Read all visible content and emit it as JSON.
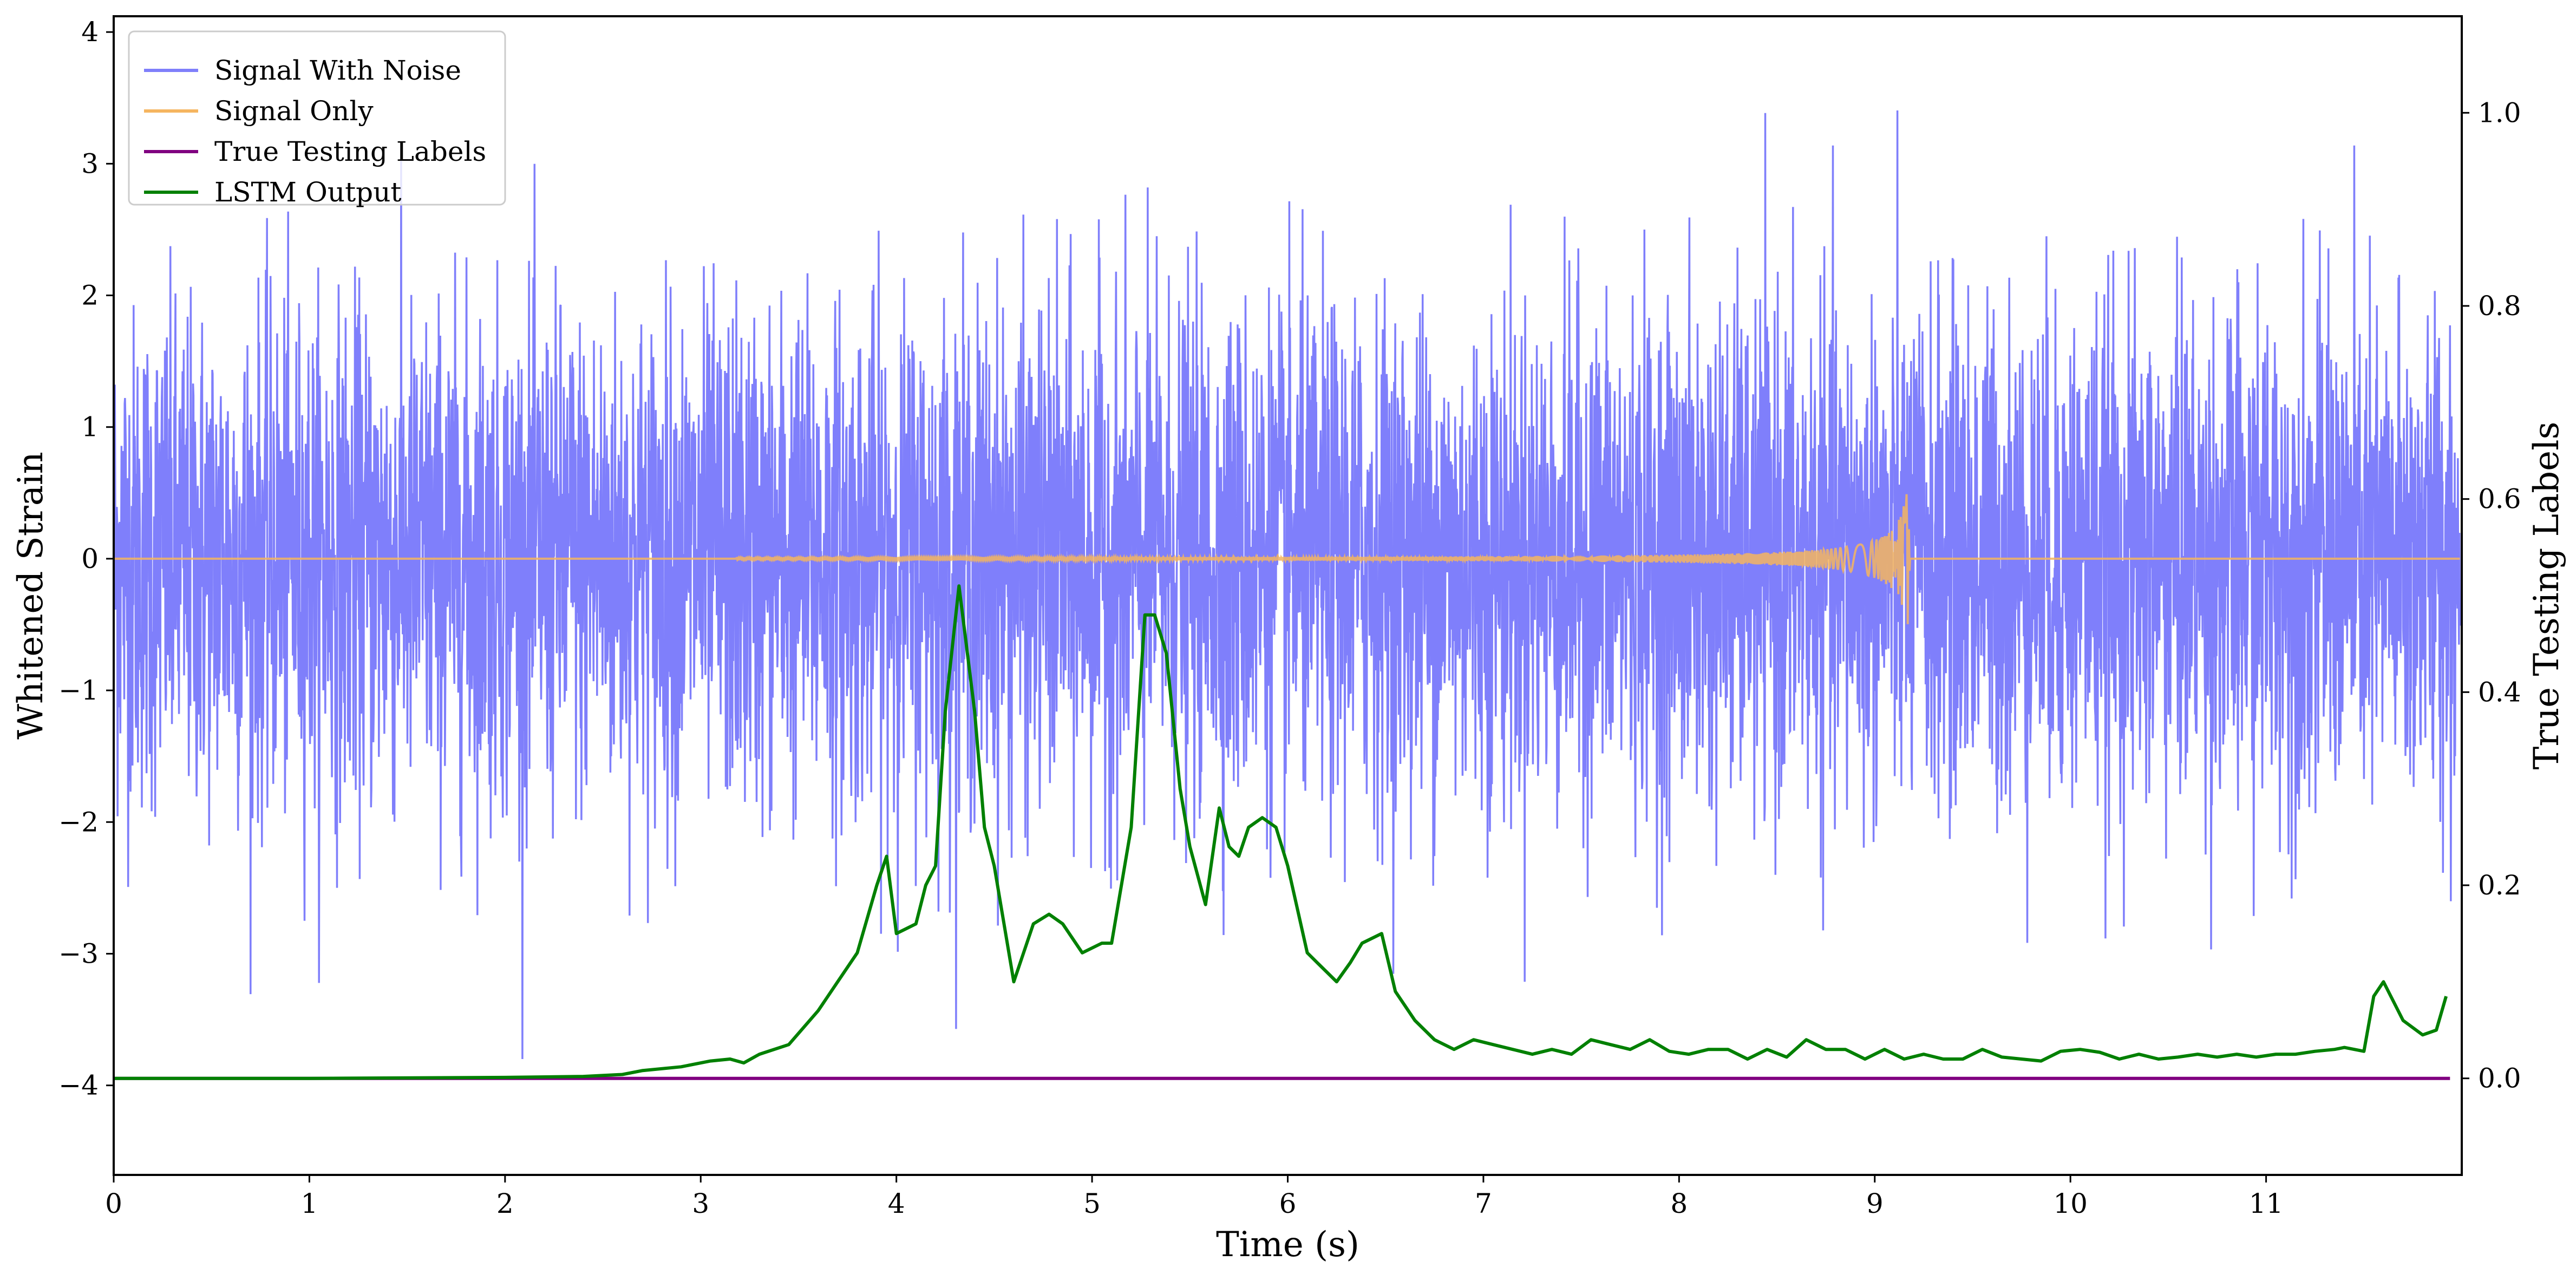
{
  "chart_data": {
    "type": "line",
    "xlabel": "Time (s)",
    "ylabel": "Whitened Strain",
    "ylabel_right": "True Testing Labels",
    "xlim": [
      0,
      12
    ],
    "ylim": [
      -4.68,
      4.12
    ],
    "ylim_right": [
      -0.1,
      1.1
    ],
    "xticks": [
      "0",
      "1",
      "2",
      "3",
      "4",
      "5",
      "6",
      "7",
      "8",
      "9",
      "10",
      "11"
    ],
    "yticks": [
      "−4",
      "−3",
      "−2",
      "−1",
      "0",
      "1",
      "2",
      "3",
      "4"
    ],
    "yticks_right": [
      "0.0",
      "0.2",
      "0.4",
      "0.6",
      "0.8",
      "1.0"
    ],
    "grid": false,
    "legend_position": "top-left",
    "colors": {
      "noise": "#7f7ffb",
      "signal": "#f5b55f",
      "labels": "#800080",
      "lstm": "#008000"
    },
    "series": [
      {
        "name": "Signal With Noise",
        "axis": "left",
        "description_kind": "dense whitened noise, approx. N(0,1), sampled 12 s",
        "amplitude_std": 0.95
      },
      {
        "name": "Signal Only",
        "axis": "left",
        "chirp_peak_time": 9.18,
        "chirp_peak_amplitude": 0.68
      },
      {
        "name": "True Testing Labels",
        "axis": "right",
        "x": [
          0,
          11.94
        ],
        "y": [
          0.0,
          0.0
        ]
      },
      {
        "name": "LSTM Output",
        "axis": "right",
        "x": [
          0.0,
          1.0,
          2.0,
          2.4,
          2.6,
          2.7,
          2.9,
          3.05,
          3.15,
          3.22,
          3.3,
          3.45,
          3.6,
          3.7,
          3.8,
          3.9,
          3.95,
          4.0,
          4.1,
          4.15,
          4.2,
          4.25,
          4.32,
          4.4,
          4.45,
          4.5,
          4.6,
          4.7,
          4.78,
          4.85,
          4.95,
          5.05,
          5.1,
          5.2,
          5.27,
          5.32,
          5.38,
          5.45,
          5.5,
          5.58,
          5.65,
          5.7,
          5.75,
          5.8,
          5.87,
          5.94,
          6.0,
          6.1,
          6.15,
          6.25,
          6.32,
          6.38,
          6.48,
          6.55,
          6.65,
          6.75,
          6.85,
          6.95,
          7.05,
          7.15,
          7.25,
          7.35,
          7.45,
          7.55,
          7.65,
          7.75,
          7.85,
          7.95,
          8.05,
          8.15,
          8.25,
          8.35,
          8.45,
          8.55,
          8.65,
          8.75,
          8.85,
          8.95,
          9.05,
          9.15,
          9.25,
          9.35,
          9.45,
          9.55,
          9.65,
          9.75,
          9.85,
          9.95,
          10.05,
          10.15,
          10.25,
          10.35,
          10.45,
          10.55,
          10.65,
          10.75,
          10.85,
          10.95,
          11.05,
          11.15,
          11.25,
          11.35,
          11.4,
          11.5,
          11.55,
          11.6,
          11.7,
          11.8,
          11.87,
          11.92
        ],
        "y": [
          0.0,
          0.0,
          0.001,
          0.002,
          0.004,
          0.008,
          0.012,
          0.018,
          0.02,
          0.016,
          0.025,
          0.035,
          0.07,
          0.1,
          0.13,
          0.2,
          0.23,
          0.15,
          0.16,
          0.2,
          0.22,
          0.38,
          0.51,
          0.38,
          0.26,
          0.22,
          0.1,
          0.16,
          0.17,
          0.16,
          0.13,
          0.14,
          0.14,
          0.26,
          0.48,
          0.48,
          0.44,
          0.3,
          0.24,
          0.18,
          0.28,
          0.24,
          0.23,
          0.26,
          0.27,
          0.26,
          0.22,
          0.13,
          0.12,
          0.1,
          0.12,
          0.14,
          0.15,
          0.09,
          0.06,
          0.04,
          0.03,
          0.04,
          0.035,
          0.03,
          0.025,
          0.03,
          0.025,
          0.04,
          0.035,
          0.03,
          0.04,
          0.028,
          0.025,
          0.03,
          0.03,
          0.02,
          0.03,
          0.022,
          0.04,
          0.03,
          0.03,
          0.02,
          0.03,
          0.02,
          0.025,
          0.02,
          0.02,
          0.03,
          0.022,
          0.02,
          0.018,
          0.028,
          0.03,
          0.027,
          0.02,
          0.025,
          0.02,
          0.022,
          0.025,
          0.022,
          0.025,
          0.022,
          0.025,
          0.025,
          0.028,
          0.03,
          0.032,
          0.028,
          0.085,
          0.1,
          0.06,
          0.045,
          0.05,
          0.085
        ]
      }
    ]
  }
}
